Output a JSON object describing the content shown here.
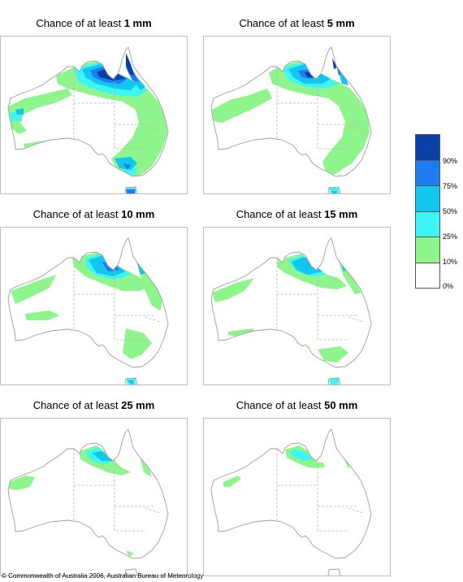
{
  "panels": [
    {
      "prefix": "Chance of at least ",
      "threshold": "1 mm"
    },
    {
      "prefix": "Chance of at least ",
      "threshold": "5 mm"
    },
    {
      "prefix": "Chance of at least ",
      "threshold": "10 mm"
    },
    {
      "prefix": "Chance of at least ",
      "threshold": "15 mm"
    },
    {
      "prefix": "Chance of at least ",
      "threshold": "25 mm"
    },
    {
      "prefix": "Chance of at least ",
      "threshold": "50 mm"
    }
  ],
  "legend": {
    "labels": [
      "90%",
      "75%",
      "50%",
      "25%",
      "10%",
      "0%"
    ],
    "colors": [
      "#0a3fa8",
      "#1d7cf2",
      "#12c6ef",
      "#3df5f5",
      "#8ef58c",
      "#ffffff"
    ]
  },
  "map_colors": {
    "green": "#8ef58c",
    "cyan": "#3df5f5",
    "sky": "#12c6ef",
    "blue": "#1d7cf2",
    "navy": "#0a3fa8",
    "outline": "#9e9e9e",
    "border": "#b5b5b5"
  },
  "footer": {
    "copyright": "© Commonwealth of Australia 2006, Australian Bureau of Meteorology"
  }
}
